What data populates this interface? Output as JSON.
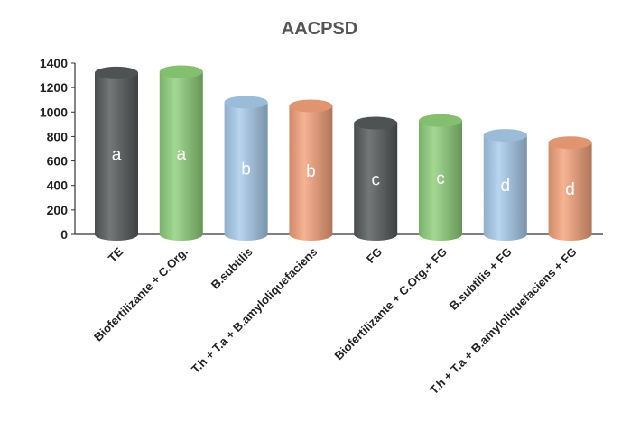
{
  "chart_data": {
    "type": "bar",
    "title": "AACPSD",
    "xlabel": "",
    "ylabel": "",
    "ylim": [
      0,
      1400
    ],
    "yticks": [
      0,
      200,
      400,
      600,
      800,
      1000,
      1200,
      1400
    ],
    "grid": false,
    "legend": "none",
    "categories": [
      "TE",
      "Biofertilizante + C.Org.",
      "B.subtilis",
      "T.h + T.a + B.amyloliquefaciens",
      "FG",
      "Biofertilizante + C.Org.+ FG",
      "B.subtilis + FG",
      "T.h + T.a + B.amyloliquefaciens + FG"
    ],
    "values": [
      1320,
      1330,
      1080,
      1050,
      910,
      930,
      810,
      750
    ],
    "letters": [
      "a",
      "a",
      "b",
      "b",
      "c",
      "c",
      "d",
      "d"
    ],
    "colors": [
      "#56595a",
      "#8fd07a",
      "#a9ccec",
      "#f4a27a",
      "#56595a",
      "#8fd07a",
      "#a9ccec",
      "#f4a27a"
    ]
  }
}
